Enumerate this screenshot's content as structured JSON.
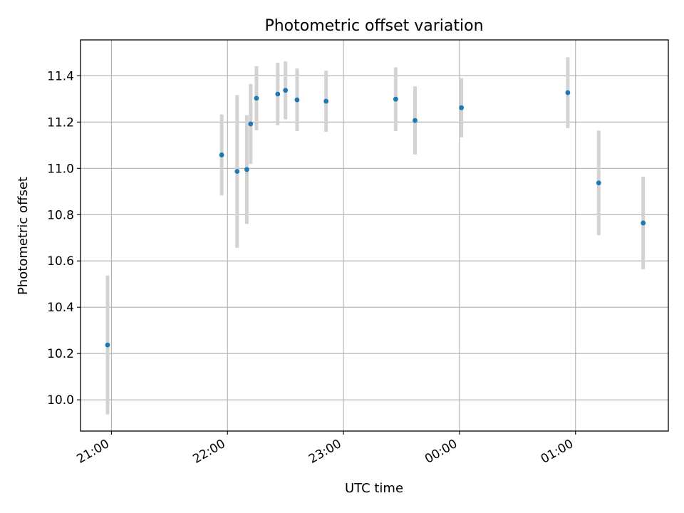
{
  "chart_data": {
    "type": "scatter",
    "title": "Photometric offset variation",
    "xlabel": "UTC time",
    "ylabel": "Photometric offset",
    "x_tick_labels": [
      "21:00",
      "22:00",
      "23:00",
      "00:00",
      "01:00"
    ],
    "x_ticks_minutes": [
      0,
      60,
      120,
      180,
      240
    ],
    "y_ticks": [
      10.0,
      10.2,
      10.4,
      10.6,
      10.8,
      11.0,
      11.2,
      11.4
    ],
    "xlim_minutes": [
      -16,
      288
    ],
    "ylim": [
      9.865,
      11.555
    ],
    "grid": true,
    "marker_color": "#1f77b4",
    "errorbar_color": "#d3d3d3",
    "points": [
      {
        "time": "20:58",
        "y": 10.237,
        "yerr": 0.3
      },
      {
        "time": "21:57",
        "y": 11.058,
        "yerr": 0.175
      },
      {
        "time": "22:05",
        "y": 10.987,
        "yerr": 0.33
      },
      {
        "time": "22:10",
        "y": 10.995,
        "yerr": 0.235
      },
      {
        "time": "22:12",
        "y": 11.192,
        "yerr": 0.173
      },
      {
        "time": "22:15",
        "y": 11.303,
        "yerr": 0.138
      },
      {
        "time": "22:26",
        "y": 11.321,
        "yerr": 0.135
      },
      {
        "time": "22:30",
        "y": 11.337,
        "yerr": 0.125
      },
      {
        "time": "22:36",
        "y": 11.296,
        "yerr": 0.135
      },
      {
        "time": "22:51",
        "y": 11.29,
        "yerr": 0.132
      },
      {
        "time": "23:27",
        "y": 11.299,
        "yerr": 0.138
      },
      {
        "time": "23:37",
        "y": 11.207,
        "yerr": 0.147
      },
      {
        "time": "00:01",
        "y": 11.262,
        "yerr": 0.128
      },
      {
        "time": "00:56",
        "y": 11.327,
        "yerr": 0.153
      },
      {
        "time": "01:12",
        "y": 10.937,
        "yerr": 0.226
      },
      {
        "time": "01:35",
        "y": 10.764,
        "yerr": 0.2
      }
    ]
  }
}
